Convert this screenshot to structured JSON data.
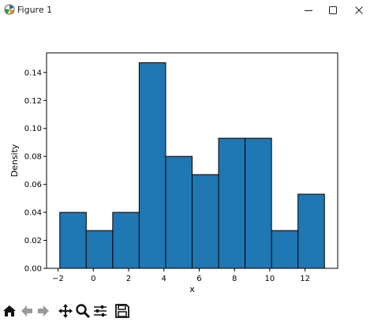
{
  "window": {
    "title": "Figure 1",
    "controls": [
      "minimize-icon",
      "maximize-icon",
      "close-icon"
    ]
  },
  "toolbar": {
    "tools": [
      "home-icon",
      "back-arrow-icon",
      "forward-arrow-icon",
      "pan-icon",
      "zoom-icon",
      "configure-subplots-icon",
      "save-icon"
    ]
  },
  "chart_data": {
    "type": "bar",
    "title": "",
    "xlabel": "x",
    "ylabel": "Density",
    "bar_color": "#1f77b4",
    "edge_color": "#000000",
    "bin_edges": [
      -1.9,
      -0.4,
      1.1,
      2.6,
      4.1,
      5.6,
      7.1,
      8.6,
      10.1,
      11.6,
      13.1
    ],
    "values": [
      0.04,
      0.027,
      0.04,
      0.147,
      0.08,
      0.067,
      0.093,
      0.093,
      0.027,
      0.053
    ],
    "xlim": [
      -2.65,
      13.85
    ],
    "ylim": [
      0,
      0.154
    ],
    "xticks": [
      -2,
      0,
      2,
      4,
      6,
      8,
      10,
      12
    ],
    "xtick_labels": [
      "−2",
      "0",
      "2",
      "4",
      "6",
      "8",
      "10",
      "12"
    ],
    "yticks": [
      0.0,
      0.02,
      0.04,
      0.06,
      0.08,
      0.1,
      0.12,
      0.14
    ],
    "ytick_labels": [
      "0.00",
      "0.02",
      "0.04",
      "0.06",
      "0.08",
      "0.10",
      "0.12",
      "0.14"
    ],
    "grid": false,
    "legend": "none"
  }
}
